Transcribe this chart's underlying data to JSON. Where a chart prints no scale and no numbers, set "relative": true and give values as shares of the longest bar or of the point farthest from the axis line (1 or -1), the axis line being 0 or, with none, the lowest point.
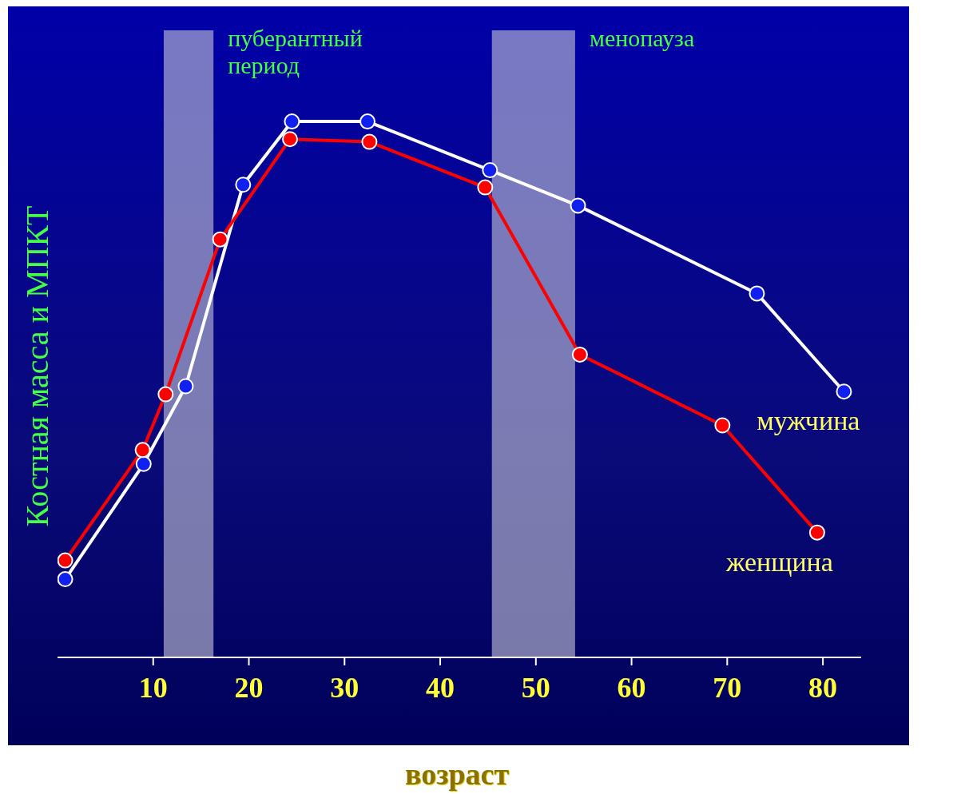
{
  "chart_data": {
    "type": "line",
    "relative": true,
    "xlabel": "возраст",
    "ylabel": "Костная масса и МПКТ",
    "xlim": [
      0,
      84
    ],
    "xticks": [
      10,
      20,
      30,
      40,
      50,
      60,
      70,
      80
    ],
    "marker": "circle",
    "line_style": "solid",
    "series": [
      {
        "name": "мужчина",
        "color": "#ffffff",
        "x": [
          0.8,
          9.0,
          13.4,
          19.4,
          24.5,
          32.4,
          45.2,
          54.4,
          73.1,
          82.2
        ],
        "values": [
          0.146,
          0.361,
          0.506,
          0.882,
          1,
          1,
          0.909,
          0.843,
          0.679,
          0.496
        ]
      },
      {
        "name": "женщина",
        "color": "#ff0000",
        "x": [
          0.8,
          8.9,
          11.3,
          17.0,
          24.3,
          32.6,
          44.7,
          54.6,
          69.5,
          79.4
        ],
        "values": [
          0.181,
          0.387,
          0.491,
          0.78,
          0.967,
          0.962,
          0.877,
          0.565,
          0.433,
          0.233
        ]
      }
    ],
    "bands": [
      {
        "axis": "x",
        "from": 11.1,
        "to": 16.3,
        "label": "пуберантный период",
        "color": "#c8c8d8"
      },
      {
        "axis": "x",
        "from": 45.4,
        "to": 54.1,
        "label": "менопауза",
        "color": "#c8c8d8"
      }
    ]
  }
}
